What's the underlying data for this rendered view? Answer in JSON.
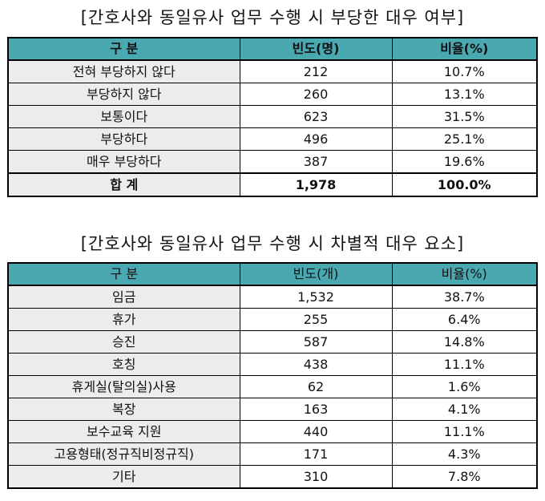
{
  "table1": {
    "title": "[간호사와 동일유사 업무 수행 시 부당한 대우 여부]",
    "headers": [
      "구 분",
      "빈도(명)",
      "비율(%)"
    ],
    "rows": [
      {
        "label": "전혀 부당하지 않다",
        "count": "212",
        "pct": "10.7%"
      },
      {
        "label": "부당하지 않다",
        "count": "260",
        "pct": "13.1%"
      },
      {
        "label": "보통이다",
        "count": "623",
        "pct": "31.5%"
      },
      {
        "label": "부당하다",
        "count": "496",
        "pct": "25.1%"
      },
      {
        "label": "매우 부당하다",
        "count": "387",
        "pct": "19.6%"
      }
    ],
    "total": {
      "label": "합 계",
      "count": "1,978",
      "pct": "100.0%"
    }
  },
  "table2": {
    "title": "[간호사와 동일유사 업무 수행 시 차별적 대우 요소]",
    "headers": [
      "구 분",
      "빈도(개)",
      "비율(%)"
    ],
    "rows": [
      {
        "label": "임금",
        "count": "1,532",
        "pct": "38.7%"
      },
      {
        "label": "휴가",
        "count": "255",
        "pct": "6.4%"
      },
      {
        "label": "승진",
        "count": "587",
        "pct": "14.8%"
      },
      {
        "label": "호칭",
        "count": "438",
        "pct": "11.1%"
      },
      {
        "label": "휴게실(탈의실)사용",
        "count": "62",
        "pct": "1.6%"
      },
      {
        "label": "복장",
        "count": "163",
        "pct": "4.1%"
      },
      {
        "label": "보수교육 지원",
        "count": "440",
        "pct": "11.1%"
      },
      {
        "label": "고용형태(정규직비정규직)",
        "count": "171",
        "pct": "4.3%"
      },
      {
        "label": "기타",
        "count": "310",
        "pct": "7.8%"
      }
    ]
  }
}
